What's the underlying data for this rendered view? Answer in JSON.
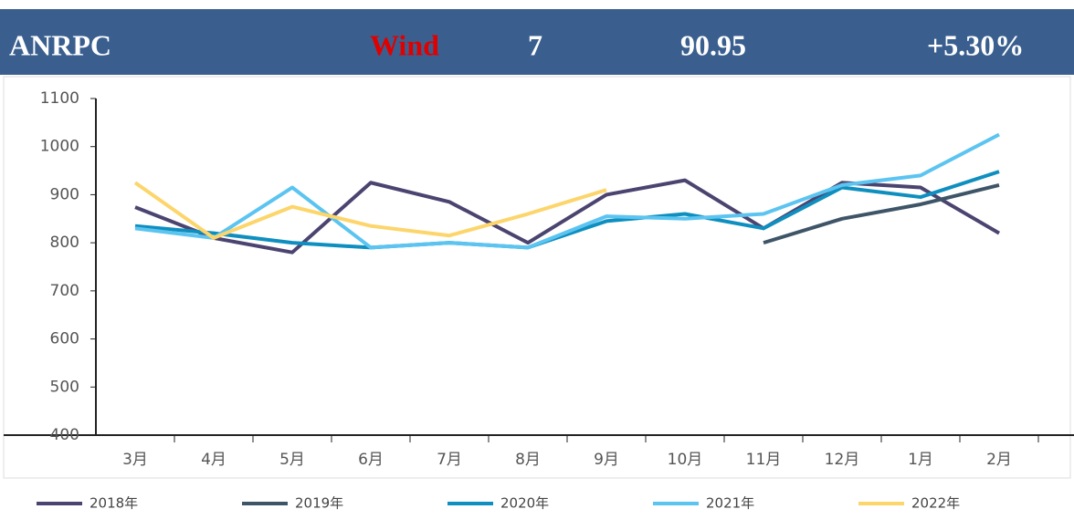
{
  "header": {
    "items": [
      "ANRPC",
      "Wind",
      "7",
      "90.95",
      "+5.30%"
    ]
  },
  "chart_data": {
    "type": "line",
    "categories": [
      "3月",
      "4月",
      "5月",
      "6月",
      "7月",
      "8月",
      "9月",
      "10月",
      "11月",
      "12月",
      "1月",
      "2月"
    ],
    "series": [
      {
        "name": "2018年",
        "color": "#4b4470",
        "values": [
          874,
          810,
          780,
          925,
          885,
          800,
          900,
          930,
          830,
          925,
          915,
          820
        ]
      },
      {
        "name": "2019年",
        "color": "#3e5568",
        "values": [
          null,
          null,
          null,
          null,
          null,
          null,
          null,
          null,
          800,
          850,
          880,
          920
        ]
      },
      {
        "name": "2020年",
        "color": "#0f8fbf",
        "values": [
          835,
          820,
          800,
          790,
          800,
          790,
          845,
          860,
          830,
          915,
          895,
          948
        ]
      },
      {
        "name": "2021年",
        "color": "#5bc4f0",
        "values": [
          830,
          810,
          915,
          790,
          800,
          790,
          855,
          850,
          860,
          920,
          940,
          1025
        ]
      },
      {
        "name": "2022年",
        "color": "#fcd56b",
        "values": [
          925,
          810,
          875,
          835,
          815,
          860,
          910,
          null,
          null,
          null,
          null,
          null
        ]
      }
    ],
    "ylim": [
      400,
      1100
    ],
    "yticks": [
      400,
      500,
      600,
      700,
      800,
      900,
      1000,
      1100
    ]
  }
}
